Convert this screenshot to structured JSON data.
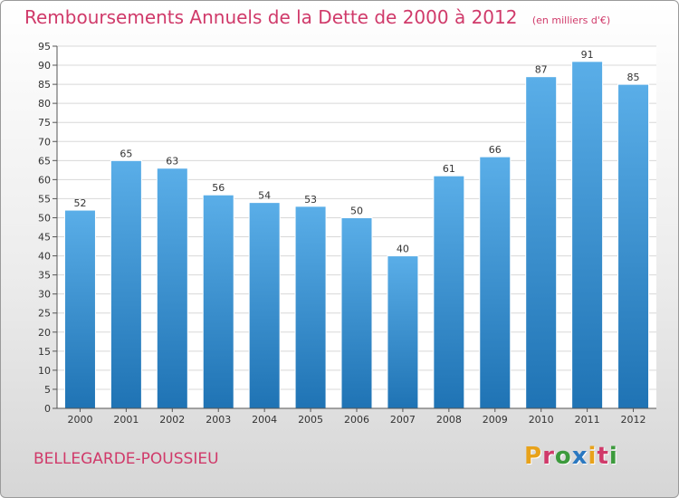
{
  "header": {
    "title": "Remboursements Annuels de la Dette de 2000 à 2012",
    "subtitle": "(en milliers d'€)"
  },
  "footer": {
    "commune": "BELLEGARDE-POUSSIEU",
    "logo": "Proxiti"
  },
  "colors": {
    "title": "#d03a6a",
    "bar_light": "#5aaee8",
    "bar_dark": "#1f73b4",
    "logo": [
      "#e8a21a",
      "#d03a6a",
      "#3c9a3c",
      "#2a78c0",
      "#e8a21a",
      "#d03a6a",
      "#3c9a3c"
    ]
  },
  "chart_data": {
    "type": "bar",
    "title": "Remboursements Annuels de la Dette de 2000 à 2012",
    "subtitle": "(en milliers d'€)",
    "categories": [
      "2000",
      "2001",
      "2002",
      "2003",
      "2004",
      "2005",
      "2006",
      "2007",
      "2008",
      "2009",
      "2010",
      "2011",
      "2012"
    ],
    "values": [
      52,
      65,
      63,
      56,
      54,
      53,
      50,
      40,
      61,
      66,
      87,
      91,
      85
    ],
    "data_labels": [
      "52",
      "65",
      "63",
      "56",
      "54",
      "53",
      "50",
      "40",
      "61",
      "66",
      "87",
      "91",
      "85"
    ],
    "ylim": [
      0,
      95
    ],
    "yticks": [
      0,
      5,
      10,
      15,
      20,
      25,
      30,
      35,
      40,
      45,
      50,
      55,
      60,
      65,
      70,
      75,
      80,
      85,
      90,
      95
    ],
    "ytick_labels": [
      "0",
      "5",
      "10",
      "15",
      "20",
      "25",
      "30",
      "35",
      "40",
      "45",
      "50",
      "55",
      "60",
      "65",
      "70",
      "75",
      "80",
      "85",
      "90",
      "95"
    ],
    "grid": true,
    "xlabel": "",
    "ylabel": ""
  }
}
